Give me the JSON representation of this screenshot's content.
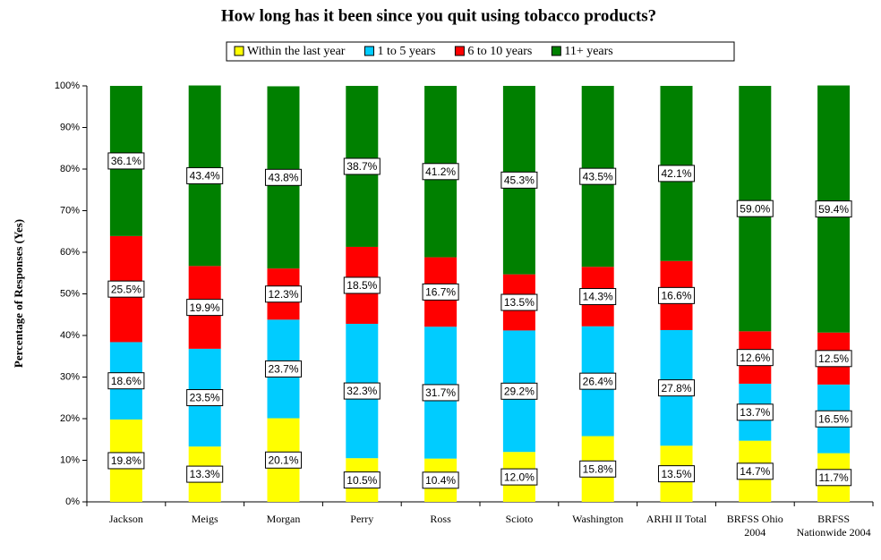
{
  "chart_data": {
    "type": "stacked_bar",
    "title": "How long has it been since you quit using tobacco products?",
    "y_label": "Percentage of Responses (Yes)",
    "categories": [
      "Jackson",
      "Meigs",
      "Morgan",
      "Perry",
      "Ross",
      "Scioto",
      "Washington",
      "ARHI II Total",
      "BRFSS Ohio 2004",
      "BRFSS Nationwide 2004"
    ],
    "series": [
      {
        "name": "Within the last year",
        "color": "#ffff00",
        "values": [
          19.8,
          13.3,
          20.1,
          10.5,
          10.4,
          12.0,
          15.8,
          13.5,
          14.7,
          11.7
        ],
        "value_labels": [
          "19.8%",
          "13.3%",
          "20.1%",
          "10.5%",
          "10.4%",
          "12.0%",
          "15.8%",
          "13.5%",
          "14.7%",
          "11.7%"
        ]
      },
      {
        "name": "1 to 5 years",
        "color": "#00ccff",
        "values": [
          18.6,
          23.5,
          23.7,
          32.3,
          31.7,
          29.2,
          26.4,
          27.8,
          13.7,
          16.5
        ],
        "value_labels": [
          "18.6%",
          "23.5%",
          "23.7%",
          "32.3%",
          "31.7%",
          "29.2%",
          "26.4%",
          "27.8%",
          "13.7%",
          "16.5%"
        ]
      },
      {
        "name": "6 to 10 years",
        "color": "#ff0000",
        "values": [
          25.5,
          19.9,
          12.3,
          18.5,
          16.7,
          13.5,
          14.3,
          16.6,
          12.6,
          12.5
        ],
        "value_labels": [
          "25.5%",
          "19.9%",
          "12.3%",
          "18.5%",
          "16.7%",
          "13.5%",
          "14.3%",
          "16.6%",
          "12.6%",
          "12.5%"
        ]
      },
      {
        "name": "11+ years",
        "color": "#008000",
        "values": [
          36.1,
          43.4,
          43.8,
          38.7,
          41.2,
          45.3,
          43.5,
          42.1,
          59.0,
          59.4
        ],
        "value_labels": [
          "36.1%",
          "43.4%",
          "43.8%",
          "38.7%",
          "41.2%",
          "45.3%",
          "43.5%",
          "42.1%",
          "59.0%",
          "59.4%"
        ]
      }
    ],
    "ylim": [
      0,
      100
    ],
    "yticks": [
      {
        "value": 0,
        "label": "0%"
      },
      {
        "value": 10,
        "label": "10%"
      },
      {
        "value": 20,
        "label": "20%"
      },
      {
        "value": 30,
        "label": "30%"
      },
      {
        "value": 40,
        "label": "40%"
      },
      {
        "value": 50,
        "label": "50%"
      },
      {
        "value": 60,
        "label": "60%"
      },
      {
        "value": 70,
        "label": "70%"
      },
      {
        "value": 80,
        "label": "80%"
      },
      {
        "value": 90,
        "label": "90%"
      },
      {
        "value": 100,
        "label": "100%"
      }
    ],
    "legend": "top"
  }
}
